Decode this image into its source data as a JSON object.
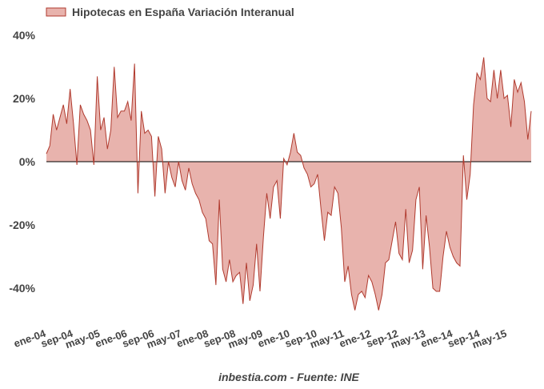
{
  "colors": {
    "line": "#b03a2e",
    "fill": "#e8b3ad",
    "zero_line": "#000000",
    "text": "#444444"
  },
  "source_label": "inbestia.com - Fuente: INE",
  "chart_data": {
    "type": "area",
    "legend": {
      "label": "Hipotecas en España Variación Interanual",
      "position": "top-left"
    },
    "grid": false,
    "ylim": [
      -48,
      40
    ],
    "y_ticks": [
      {
        "value": 40,
        "label": "40%"
      },
      {
        "value": 20,
        "label": "20%"
      },
      {
        "value": 0,
        "label": "0%"
      },
      {
        "value": -20,
        "label": "-20%"
      },
      {
        "value": -40,
        "label": "-40%"
      }
    ],
    "x_ticks": [
      "ene-04",
      "sep-04",
      "may-05",
      "ene-06",
      "sep-06",
      "may-07",
      "ene-08",
      "sep-08",
      "may-09",
      "ene-10",
      "sep-10",
      "may-11",
      "ene-12",
      "sep-12",
      "may-13",
      "ene-14",
      "sep-14",
      "may-15"
    ],
    "x_start": "ene-04",
    "x_end": "oct-15",
    "series": [
      {
        "name": "Hipotecas en España Variación Interanual",
        "values": [
          2.5,
          5,
          15,
          10,
          14,
          18,
          12,
          23,
          12,
          -1,
          18,
          15,
          13,
          10,
          -1,
          27,
          10,
          14,
          4,
          10,
          30,
          14,
          16,
          16,
          19,
          13,
          31,
          -10,
          16,
          9,
          10,
          8,
          -11,
          8,
          4,
          -10,
          0,
          -5,
          -8,
          0,
          -6,
          -9,
          -2,
          -7,
          -10,
          -12,
          -16,
          -18,
          -25,
          -26,
          -39,
          -12,
          -34,
          -38,
          -31,
          -38,
          -36,
          -35,
          -45,
          -32,
          -44,
          -39,
          -26,
          -41,
          -24,
          -10,
          -18,
          -8,
          -6,
          -18,
          1,
          -1,
          3,
          9,
          3,
          2,
          -2,
          -4,
          -8,
          -7,
          -4,
          -15,
          -25,
          -16,
          -17,
          -8,
          -10,
          -21,
          -38,
          -33,
          -42,
          -47,
          -42,
          -41,
          -43,
          -36,
          -38,
          -42,
          -47,
          -42,
          -32,
          -31,
          -25,
          -19,
          -29,
          -31,
          -15,
          -32,
          -28,
          -12,
          -8,
          -34,
          -17,
          -27,
          -40,
          -41,
          -41,
          -30,
          -22,
          -27,
          -30,
          -32,
          -33,
          2,
          -12,
          -4,
          18,
          28,
          26,
          33,
          20,
          19,
          29,
          20,
          29,
          20,
          21,
          11,
          26,
          22,
          25,
          19,
          7,
          16
        ]
      }
    ]
  }
}
